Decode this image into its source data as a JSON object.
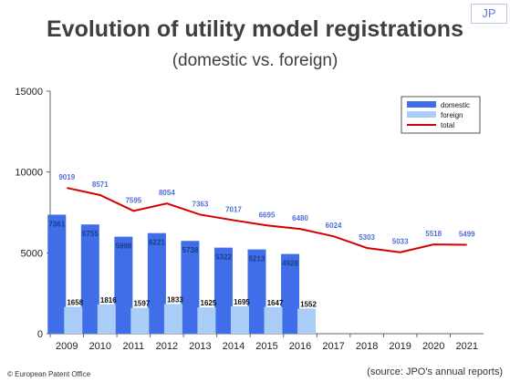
{
  "header": {
    "badge": "JP",
    "title": "Evolution of utility model registrations",
    "subtitle": "(domestic vs. foreign)"
  },
  "footer": {
    "copyright": "© European Patent Office",
    "source": "(source: JPO's annual reports)"
  },
  "colors": {
    "domestic": "#3f6ee8",
    "foreign": "#a9cdf7",
    "total": "#d40000",
    "domestic_label": "#1f3a8a",
    "total_label": "#4f6fd6"
  },
  "chart_data": {
    "type": "bar",
    "categories": [
      "2009",
      "2010",
      "2011",
      "2012",
      "2013",
      "2014",
      "2015",
      "2016",
      "2017",
      "2018",
      "2019",
      "2020",
      "2021"
    ],
    "series": [
      {
        "name": "domestic",
        "type": "bar",
        "values": [
          7361,
          6755,
          5998,
          6221,
          5738,
          5322,
          5213,
          4928,
          null,
          null,
          null,
          null,
          null
        ]
      },
      {
        "name": "foreign",
        "type": "bar",
        "values": [
          1658,
          1816,
          1597,
          1833,
          1625,
          1695,
          1647,
          1552,
          null,
          null,
          null,
          null,
          null
        ]
      },
      {
        "name": "total",
        "type": "line",
        "values": [
          9019,
          8571,
          7595,
          8054,
          7363,
          7017,
          6695,
          6480,
          6024,
          5303,
          5033,
          5518,
          5499
        ]
      }
    ],
    "yticks": [
      "0",
      "5000",
      "10000",
      "15000"
    ],
    "ylim": [
      0,
      15000
    ],
    "legend": "top-right",
    "grid": false
  }
}
